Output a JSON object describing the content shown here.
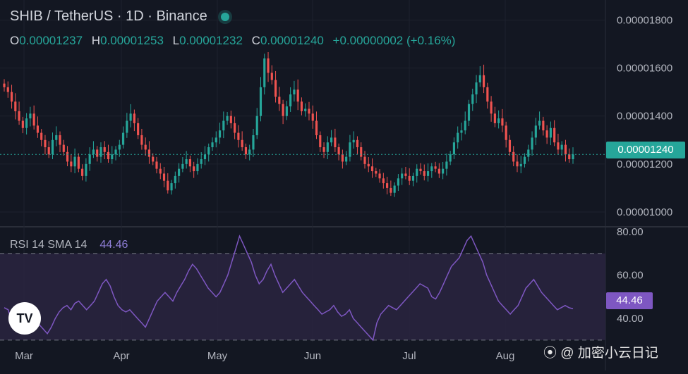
{
  "header": {
    "title": "SHIB / TetherUS · 1D · Binance",
    "ohlc": {
      "o_label": "O",
      "o_value": "0.00001237",
      "h_label": "H",
      "h_value": "0.00001253",
      "l_label": "L",
      "l_value": "0.00001232",
      "c_label": "C",
      "c_value": "0.00001240",
      "change": "+0.00000002 (+0.16%)"
    }
  },
  "price_badge": "0.00001240",
  "rsi": {
    "label": "RSI 14 SMA 14",
    "value": "44.46",
    "badge": "44.46"
  },
  "logo_text": "TV",
  "watermark": "⦿ @ 加密小云日记",
  "colors": {
    "background": "#131722",
    "up": "#26a69a",
    "down": "#ef5350",
    "rsi_line": "#7e57c2",
    "rsi_band": "#2a2440"
  },
  "chart_data": [
    {
      "type": "candlestick",
      "title": "SHIB / TetherUS · 1D · Binance",
      "x": [
        "Mar",
        "Apr",
        "May",
        "Jun",
        "Jul",
        "Aug"
      ],
      "y_tick_labels": [
        "0.00001800",
        "0.00001600",
        "0.00001400",
        "0.00001200",
        "0.00001000"
      ],
      "ylim": [
        9.5e-06,
        1.86e-05
      ],
      "current_price": 1.24e-05,
      "close_series_approx": [
        1.52e-05,
        1.5e-05,
        1.46e-05,
        1.42e-05,
        1.38e-05,
        1.35e-05,
        1.39e-05,
        1.41e-05,
        1.36e-05,
        1.33e-05,
        1.3e-05,
        1.27e-05,
        1.24e-05,
        1.3e-05,
        1.32e-05,
        1.28e-05,
        1.25e-05,
        1.21e-05,
        1.19e-05,
        1.23e-05,
        1.18e-05,
        1.15e-05,
        1.2e-05,
        1.24e-05,
        1.26e-05,
        1.23e-05,
        1.27e-05,
        1.25e-05,
        1.22e-05,
        1.24e-05,
        1.26e-05,
        1.28e-05,
        1.33e-05,
        1.38e-05,
        1.41e-05,
        1.37e-05,
        1.32e-05,
        1.28e-05,
        1.26e-05,
        1.23e-05,
        1.21e-05,
        1.18e-05,
        1.16e-05,
        1.13e-05,
        1.09e-05,
        1.12e-05,
        1.15e-05,
        1.18e-05,
        1.2e-05,
        1.22e-05,
        1.19e-05,
        1.17e-05,
        1.2e-05,
        1.22e-05,
        1.24e-05,
        1.27e-05,
        1.29e-05,
        1.31e-05,
        1.34e-05,
        1.38e-05,
        1.4e-05,
        1.37e-05,
        1.33e-05,
        1.3e-05,
        1.27e-05,
        1.24e-05,
        1.26e-05,
        1.32e-05,
        1.4e-05,
        1.52e-05,
        1.64e-05,
        1.58e-05,
        1.55e-05,
        1.48e-05,
        1.45e-05,
        1.4e-05,
        1.44e-05,
        1.49e-05,
        1.51e-05,
        1.46e-05,
        1.42e-05,
        1.43e-05,
        1.41e-05,
        1.38e-05,
        1.32e-05,
        1.27e-05,
        1.25e-05,
        1.29e-05,
        1.31e-05,
        1.27e-05,
        1.24e-05,
        1.21e-05,
        1.23e-05,
        1.29e-05,
        1.3e-05,
        1.27e-05,
        1.23e-05,
        1.2e-05,
        1.19e-05,
        1.17e-05,
        1.16e-05,
        1.14e-05,
        1.12e-05,
        1.1e-05,
        1.08e-05,
        1.11e-05,
        1.14e-05,
        1.16e-05,
        1.15e-05,
        1.13e-05,
        1.15e-05,
        1.18e-05,
        1.17e-05,
        1.15e-05,
        1.17e-05,
        1.19e-05,
        1.18e-05,
        1.16e-05,
        1.18e-05,
        1.21e-05,
        1.24e-05,
        1.29e-05,
        1.33e-05,
        1.34e-05,
        1.38e-05,
        1.45e-05,
        1.49e-05,
        1.54e-05,
        1.57e-05,
        1.52e-05,
        1.46e-05,
        1.41e-05,
        1.37e-05,
        1.39e-05,
        1.36e-05,
        1.3e-05,
        1.25e-05,
        1.21e-05,
        1.19e-05,
        1.2e-05,
        1.23e-05,
        1.26e-05,
        1.31e-05,
        1.36e-05,
        1.38e-05,
        1.34e-05,
        1.31e-05,
        1.35e-05,
        1.29e-05,
        1.26e-05,
        1.28e-05,
        1.24e-05,
        1.22e-05,
        1.24e-05
      ]
    },
    {
      "type": "line",
      "title": "RSI 14 SMA 14",
      "y_tick_labels": [
        "80.00",
        "60.00",
        "40.00"
      ],
      "ylim": [
        29,
        81
      ],
      "band": [
        30,
        70
      ],
      "current_value": 44.46,
      "values_approx": [
        45,
        44,
        38,
        36,
        34,
        40,
        42,
        44,
        40,
        37,
        35,
        33,
        36,
        40,
        43,
        45,
        46,
        44,
        47,
        48,
        46,
        44,
        46,
        48,
        52,
        56,
        58,
        55,
        50,
        46,
        44,
        43,
        44,
        42,
        40,
        38,
        36,
        40,
        44,
        48,
        50,
        52,
        50,
        48,
        52,
        55,
        58,
        62,
        65,
        63,
        60,
        57,
        54,
        52,
        50,
        52,
        56,
        60,
        66,
        72,
        78,
        74,
        70,
        66,
        60,
        56,
        58,
        62,
        65,
        60,
        56,
        52,
        54,
        56,
        58,
        55,
        52,
        50,
        48,
        46,
        44,
        42,
        43,
        44,
        46,
        43,
        41,
        42,
        44,
        40,
        38,
        36,
        34,
        32,
        30,
        38,
        42,
        44,
        46,
        45,
        44,
        46,
        48,
        50,
        52,
        54,
        56,
        55,
        54,
        50,
        49,
        52,
        56,
        60,
        64,
        66,
        68,
        72,
        76,
        78,
        74,
        70,
        66,
        60,
        56,
        52,
        48,
        46,
        44,
        42,
        44,
        46,
        50,
        54,
        56,
        58,
        55,
        52,
        50,
        48,
        46,
        44,
        45,
        46,
        45,
        44.46
      ]
    }
  ]
}
